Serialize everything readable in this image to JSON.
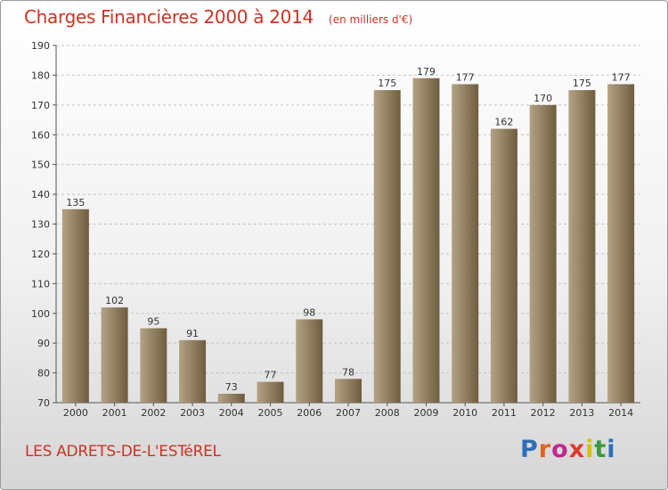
{
  "header": {
    "title": "Charges Financières 2000 à 2014",
    "unit": "(en milliers d'€)"
  },
  "footer": {
    "commune": "LES ADRETS-DE-L'ESTéREL"
  },
  "logo": {
    "letters": [
      "P",
      "r",
      "o",
      "x",
      "i",
      "t",
      "i"
    ]
  },
  "colors": {
    "bar_light": "#b3a284",
    "bar_dark": "#6f5d3e",
    "title": "#cc3322"
  },
  "chart_data": {
    "type": "bar",
    "title": "Charges Financières 2000 à 2014",
    "subtitle": "(en milliers d'€)",
    "xlabel": "",
    "ylabel": "",
    "categories": [
      "2000",
      "2001",
      "2002",
      "2003",
      "2004",
      "2005",
      "2006",
      "2007",
      "2008",
      "2009",
      "2010",
      "2011",
      "2012",
      "2013",
      "2014"
    ],
    "values": [
      135,
      102,
      95,
      91,
      73,
      77,
      98,
      78,
      175,
      179,
      177,
      162,
      170,
      175,
      177
    ],
    "ylim": [
      70,
      190
    ],
    "yticks": [
      70,
      80,
      90,
      100,
      110,
      120,
      130,
      140,
      150,
      160,
      170,
      180,
      190
    ],
    "grid": true,
    "legend": "none"
  }
}
